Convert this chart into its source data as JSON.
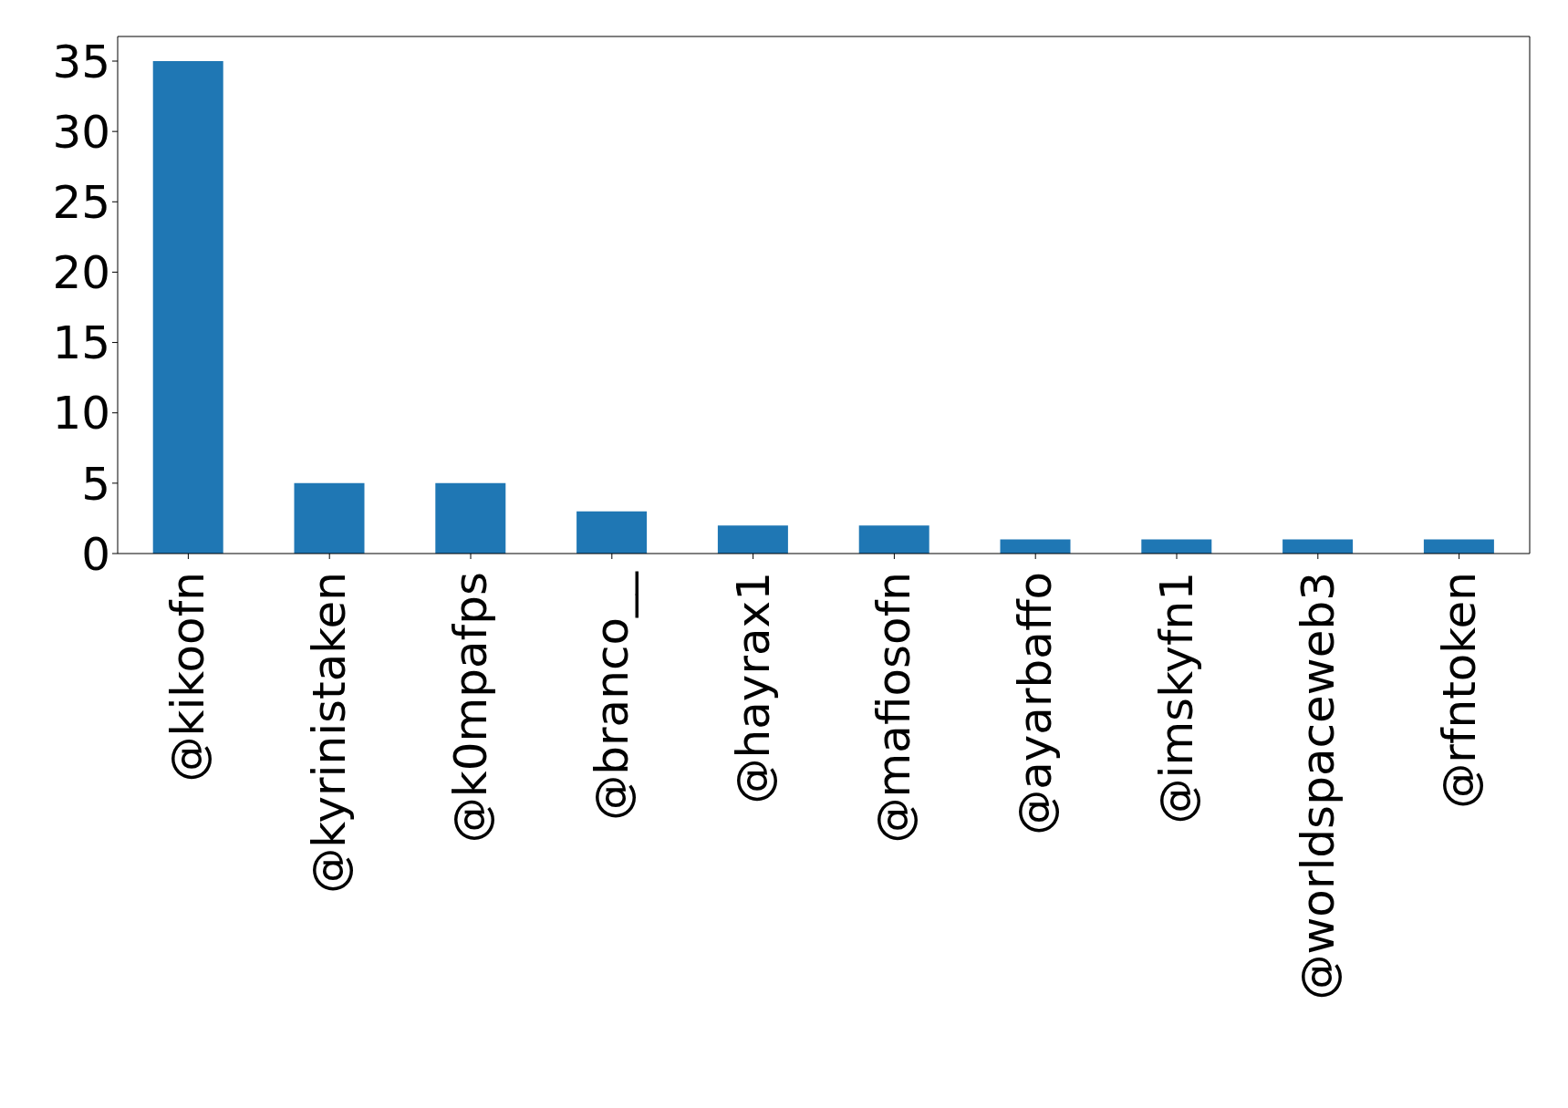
{
  "chart_data": {
    "type": "bar",
    "categories": [
      "@kikoofn",
      "@kyrinistaken",
      "@k0mpafps",
      "@branco__",
      "@hayrax1",
      "@mafiosofn",
      "@ayarbaffo",
      "@imskyfn1",
      "@worldspaceweb3",
      "@rfntoken"
    ],
    "values": [
      35,
      5,
      5,
      3,
      2,
      2,
      1,
      1,
      1,
      1
    ],
    "color": "#1f77b4",
    "ylim": [
      0,
      36.75
    ],
    "yticks": [
      0,
      5,
      10,
      15,
      20,
      25,
      30,
      35
    ]
  }
}
